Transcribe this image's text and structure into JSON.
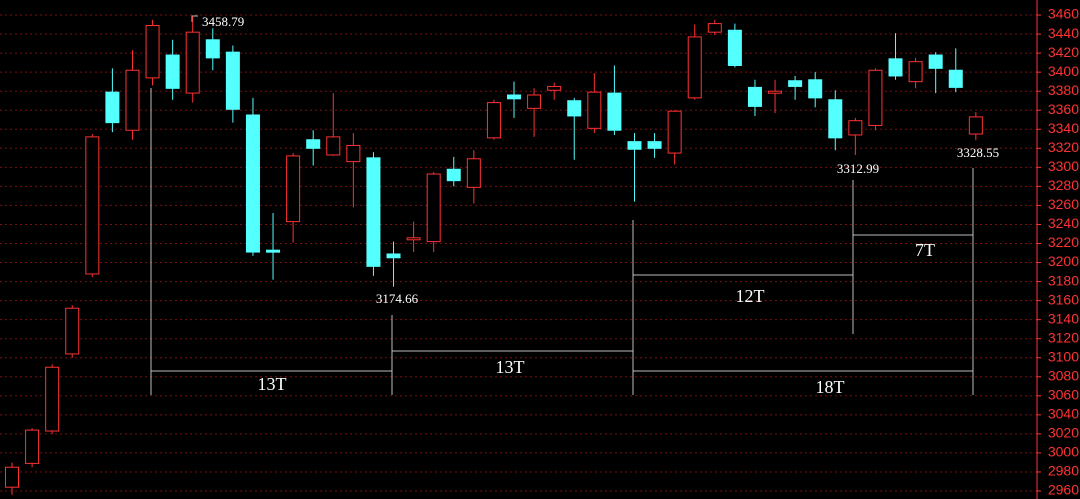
{
  "chart_data": {
    "type": "candlestick",
    "up_color": "#ff3232",
    "down_color": "#54ffff",
    "grid": true,
    "ylim": [
      2951.6,
      3475.8
    ],
    "yticks": [
      2960,
      2980,
      3000,
      3020,
      3040,
      3060,
      3080,
      3100,
      3120,
      3140,
      3160,
      3180,
      3200,
      3220,
      3240,
      3260,
      3280,
      3300,
      3320,
      3340,
      3360,
      3380,
      3400,
      3420,
      3440,
      3460
    ],
    "open": [
      2964,
      2989,
      3023,
      3104,
      3188,
      3379,
      3339,
      3394,
      3418,
      3378,
      3434,
      3421,
      3355,
      3213,
      3243,
      3329,
      3313,
      3306,
      3310,
      3209,
      3225,
      3222,
      3298,
      3279,
      3331,
      3376,
      3362,
      3381,
      3370,
      3341,
      3378,
      3327,
      3327,
      3315,
      3373,
      3442,
      3444,
      3384,
      3379,
      3391,
      3392,
      3371,
      3334,
      3344,
      3414,
      3390,
      3418,
      3402,
      3335
    ],
    "high": [
      2990,
      3026,
      3093,
      3155,
      3335,
      3404,
      3423,
      3455,
      3434,
      3458.79,
      3446,
      3428,
      3373,
      3252,
      3315,
      3339,
      3378,
      3336,
      3316,
      3222,
      3243,
      3295,
      3311,
      3318,
      3371,
      3390,
      3383,
      3389,
      3373,
      3399,
      3407,
      3336,
      3336,
      3360,
      3450,
      3455,
      3451,
      3392,
      3392,
      3396,
      3400,
      3381,
      3352,
      3404,
      3441,
      3415,
      3421,
      3425,
      3358
    ],
    "low": [
      2956,
      2985,
      3020,
      3100,
      3185,
      3337,
      3329,
      3386,
      3371,
      3368,
      3402,
      3347,
      3207,
      3182,
      3221,
      3302,
      3312,
      3258,
      3186,
      3174.66,
      3211,
      3211,
      3280,
      3262,
      3329,
      3352,
      3332,
      3371,
      3308,
      3336,
      3334,
      3264,
      3310,
      3303,
      3371,
      3439,
      3405,
      3354,
      3357,
      3371,
      3363,
      3318,
      3312.99,
      3339,
      3392,
      3383,
      3378,
      3379,
      3328.55
    ],
    "close": [
      2985,
      3024,
      3090,
      3152,
      3332,
      3347,
      3402,
      3449,
      3383,
      3442,
      3415,
      3361,
      3211,
      3212,
      3312,
      3320,
      3332,
      3323,
      3196,
      3205,
      3226,
      3293,
      3286,
      3309,
      3368,
      3372,
      3376,
      3385,
      3354,
      3379,
      3339,
      3319,
      3320,
      3359,
      3437,
      3451,
      3407,
      3364,
      3380,
      3385,
      3373,
      3331,
      3349,
      3402,
      3396,
      3411,
      3404,
      3384,
      3353
    ],
    "annotations": [
      "3458.79",
      "3174.66",
      "3312.99",
      "3328.55",
      "13T",
      "13T",
      "12T",
      "18T",
      "7T"
    ]
  }
}
